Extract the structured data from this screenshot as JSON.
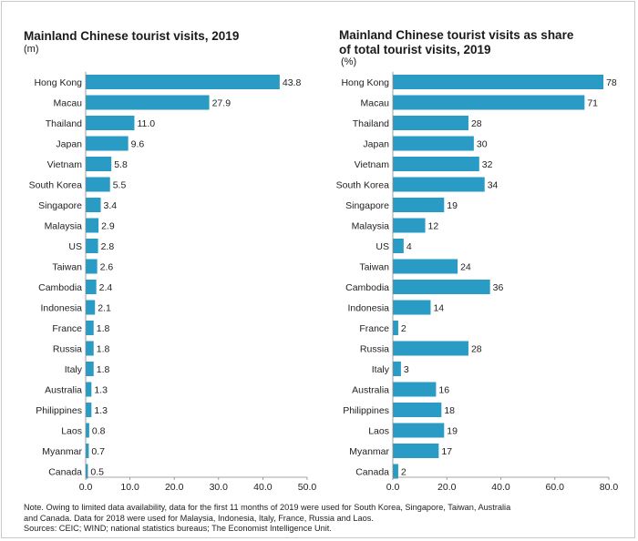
{
  "chart_data": [
    {
      "type": "bar",
      "orientation": "horizontal",
      "title": "Mainland Chinese tourist visits, 2019",
      "subtitle": "(m)",
      "categories": [
        "Hong Kong",
        "Macau",
        "Thailand",
        "Japan",
        "Vietnam",
        "South Korea",
        "Singapore",
        "Malaysia",
        "US",
        "Taiwan",
        "Cambodia",
        "Indonesia",
        "France",
        "Russia",
        "Italy",
        "Australia",
        "Philippines",
        "Laos",
        "Myanmar",
        "Canada"
      ],
      "values": [
        43.8,
        27.9,
        11.0,
        9.6,
        5.8,
        5.5,
        3.4,
        2.9,
        2.8,
        2.6,
        2.4,
        2.1,
        1.8,
        1.8,
        1.8,
        1.3,
        1.3,
        0.8,
        0.7,
        0.5
      ],
      "value_labels": [
        "43.8",
        "27.9",
        "11.0",
        "9.6",
        "5.8",
        "5.5",
        "3.4",
        "2.9",
        "2.8",
        "2.6",
        "2.4",
        "2.1",
        "1.8",
        "1.8",
        "1.8",
        "1.3",
        "1.3",
        "0.8",
        "0.7",
        "0.5"
      ],
      "xlim": [
        0,
        50
      ],
      "xticks": [
        0,
        10,
        20,
        30,
        40,
        50
      ],
      "xtick_labels": [
        "0.0",
        "10.0",
        "20.0",
        "30.0",
        "40.0",
        "50.0"
      ],
      "bar_color": "#2a9bc4"
    },
    {
      "type": "bar",
      "orientation": "horizontal",
      "title": "Mainland Chinese tourist visits as share of total tourist visits, 2019",
      "title_lines": [
        "Mainland Chinese tourist visits as share",
        "of total tourist visits, 2019"
      ],
      "subtitle": "(%)",
      "categories": [
        "Hong Kong",
        "Macau",
        "Thailand",
        "Japan",
        "Vietnam",
        "South Korea",
        "Singapore",
        "Malaysia",
        "US",
        "Taiwan",
        "Cambodia",
        "Indonesia",
        "France",
        "Russia",
        "Italy",
        "Australia",
        "Philippines",
        "Laos",
        "Myanmar",
        "Canada"
      ],
      "values": [
        78,
        71,
        28,
        30,
        32,
        34,
        19,
        12,
        4,
        24,
        36,
        14,
        2,
        28,
        3,
        16,
        18,
        19,
        17,
        2
      ],
      "value_labels": [
        "78",
        "71",
        "28",
        "30",
        "32",
        "34",
        "19",
        "12",
        "4",
        "24",
        "36",
        "14",
        "2",
        "28",
        "3",
        "16",
        "18",
        "19",
        "17",
        "2"
      ],
      "xlim": [
        0,
        80
      ],
      "xticks": [
        0,
        20,
        40,
        60,
        80
      ],
      "xtick_labels": [
        "0.0",
        "20.0",
        "40.0",
        "60.0",
        "80.0"
      ],
      "bar_color": "#2a9bc4"
    }
  ],
  "note": {
    "line1": "Note. Owing to limited data availability, data for the first 11 months of 2019 were used for South Korea, Singapore, Taiwan, Australia",
    "line2": "and  Canada. Data for 2018 were used for Malaysia, Indonesia, Italy, France, Russia and Laos.",
    "sources": "Sources: CEIC; WIND; national statistics bureaus; The Economist Intelligence Unit."
  }
}
